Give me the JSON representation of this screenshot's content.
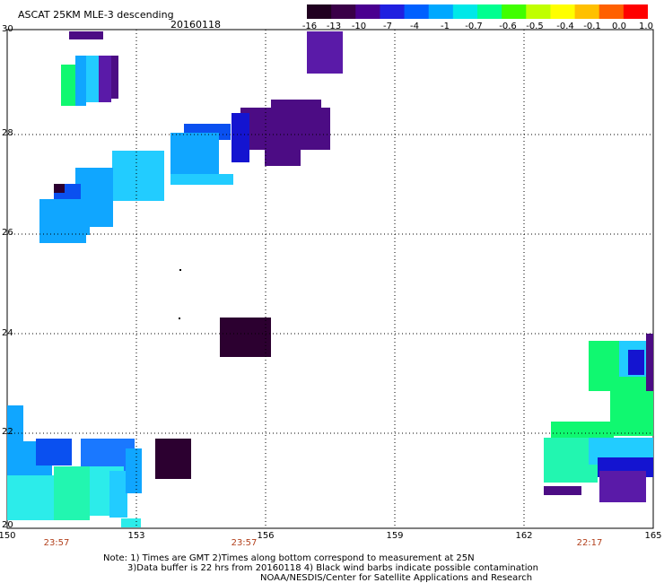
{
  "header": {
    "title": "ASCAT 25KM MLE-3 descending",
    "date": "20160118"
  },
  "colorbar": {
    "ticks": [
      "-16",
      "-13",
      "-10",
      "-7",
      "-4",
      "-1",
      "-0.7",
      "-0.6",
      "-0.5",
      "-0.4",
      "-0.1",
      "0.0",
      "1.0"
    ],
    "colors": [
      "#200020",
      "#3a0048",
      "#4a0090",
      "#2020e0",
      "#0060ff",
      "#00a8ff",
      "#00e8e8",
      "#00ff90",
      "#40ff00",
      "#c0ff00",
      "#ffff00",
      "#ffc000",
      "#ff6000",
      "#ff0000"
    ]
  },
  "axes": {
    "lat_labels": [
      "30",
      "28",
      "26",
      "24",
      "22",
      "20"
    ],
    "lon_labels": [
      "150",
      "153",
      "156",
      "159",
      "162",
      "165"
    ],
    "time_labels": [
      "23:57",
      "23:57",
      "22:17"
    ],
    "lat_range": [
      20,
      30
    ],
    "lon_range": [
      150,
      165
    ],
    "grid": "dotted"
  },
  "note": {
    "line1": "Note: 1) Times are GMT 2)Times along bottom correspond to measurement at 25N",
    "line2": "3)Data buffer is 22 hrs from 20160118 4) Black wind barbs indicate possible contamination",
    "line3": "NOAA/NESDIS/Center for Satellite Applications and Research"
  }
}
